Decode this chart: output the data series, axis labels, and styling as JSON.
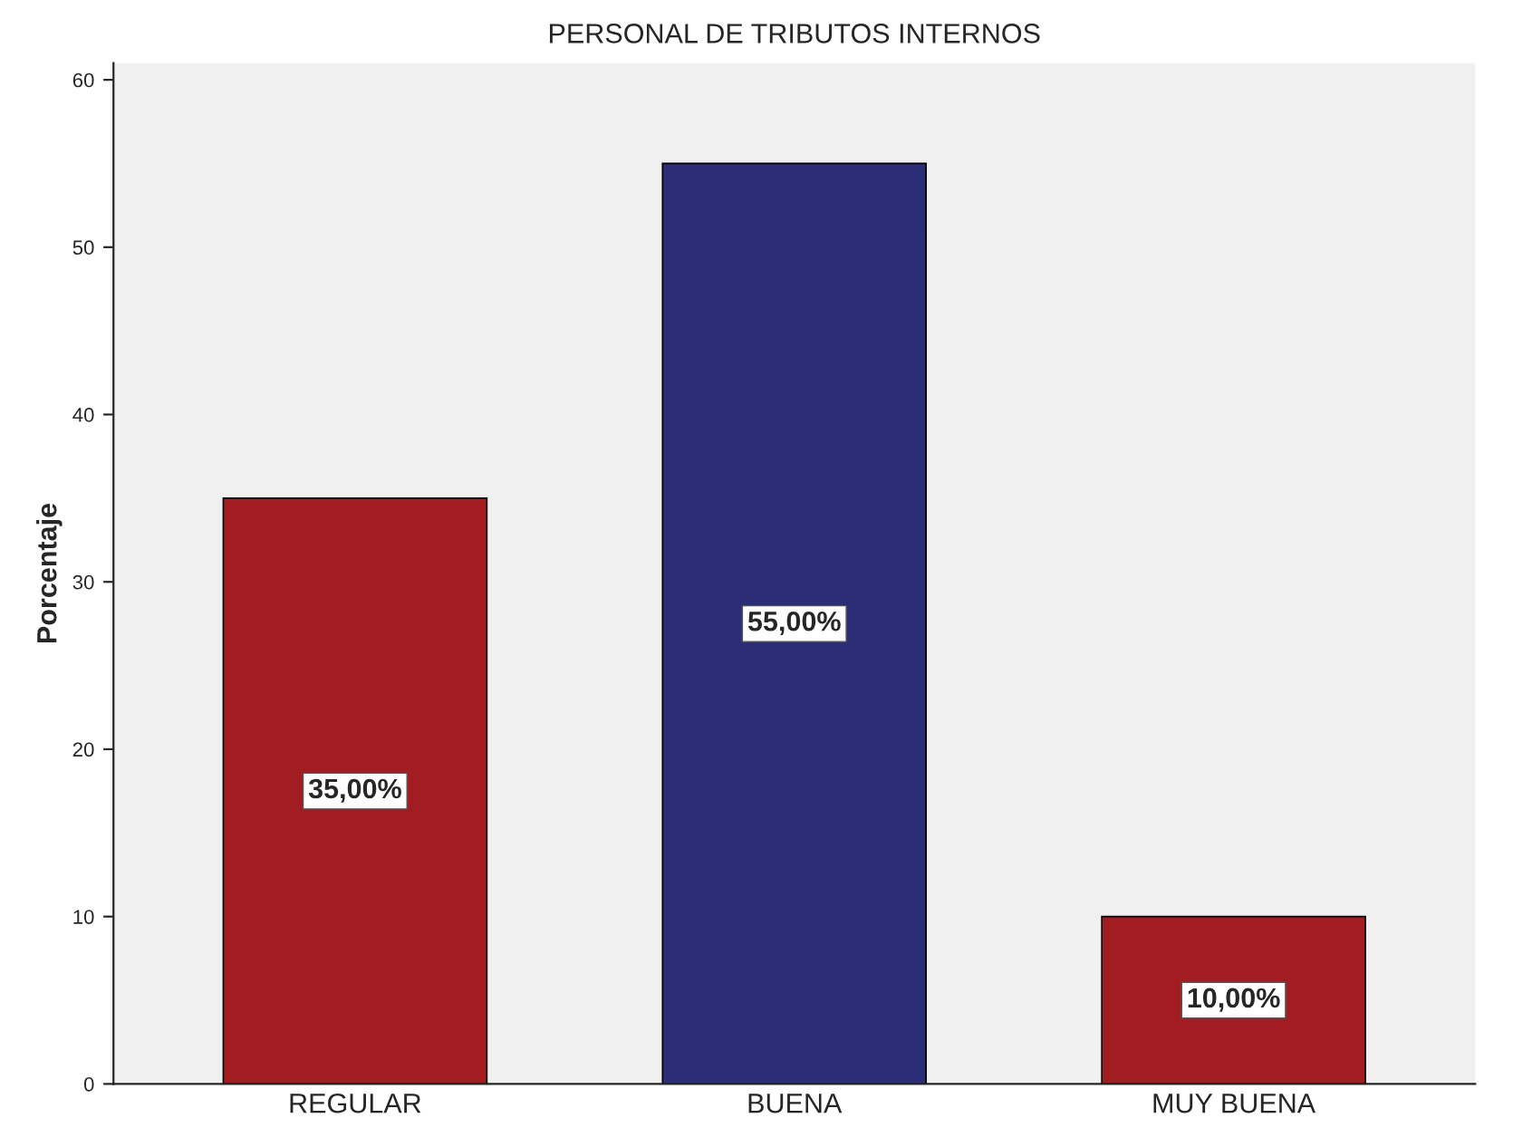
{
  "chart_data": {
    "type": "bar",
    "title": "PERSONAL DE TRIBUTOS INTERNOS",
    "ylabel": "Porcentaje",
    "categories": [
      "REGULAR",
      "BUENA",
      "MUY BUENA"
    ],
    "values": [
      35,
      55,
      10
    ],
    "colors": [
      "#a11d21",
      "#2b2d76",
      "#a11d21"
    ],
    "value_labels": [
      "35,00%",
      "55,00%",
      "10,00%"
    ],
    "ylim": [
      0,
      61
    ],
    "yticks": [
      0,
      10,
      20,
      30,
      40,
      50,
      60
    ],
    "grid": false,
    "legend": false
  }
}
